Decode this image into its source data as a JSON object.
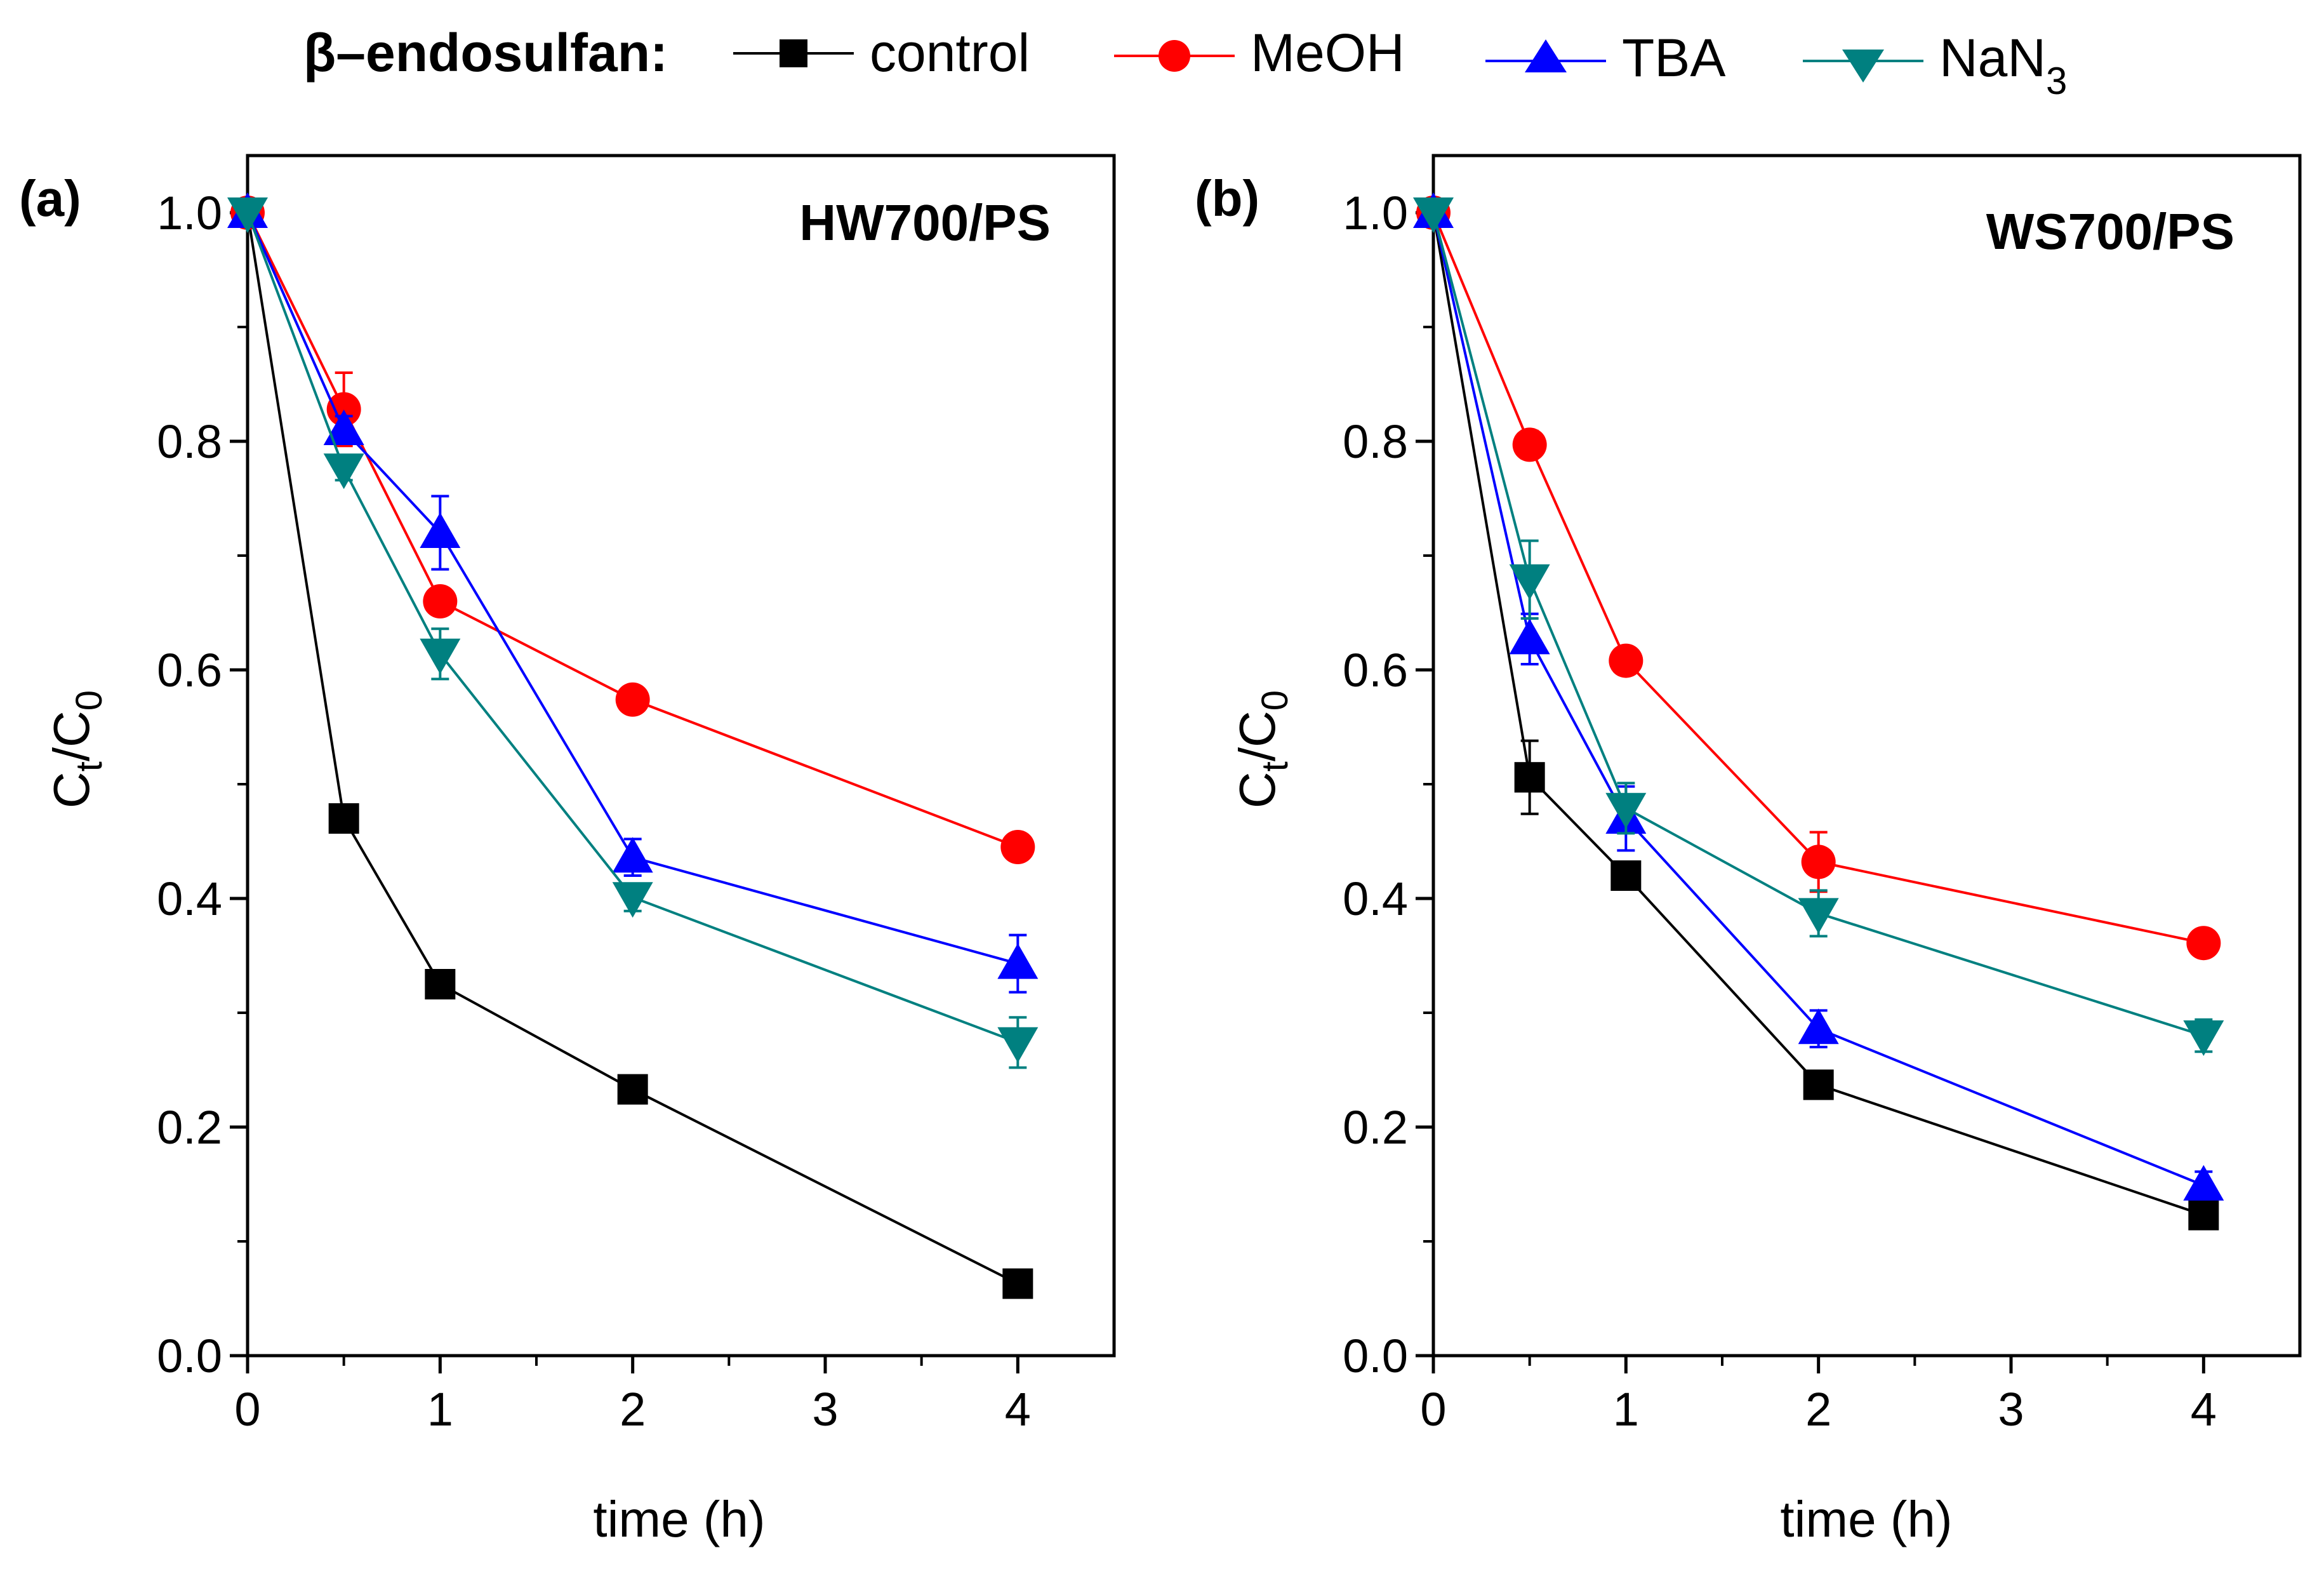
{
  "legend": {
    "title": "β–endosulfan:",
    "items": [
      {
        "key": "control",
        "label": "control",
        "sub": "",
        "color": "#000000",
        "marker": "square"
      },
      {
        "key": "meoh",
        "label": "MeOH",
        "sub": "",
        "color": "#ff0000",
        "marker": "circle"
      },
      {
        "key": "tba",
        "label": "TBA",
        "sub": "",
        "color": "#0000ff",
        "marker": "triangle-up"
      },
      {
        "key": "nan3",
        "label": "NaN",
        "sub": "3",
        "color": "#008080",
        "marker": "triangle-down"
      }
    ]
  },
  "chart_data": [
    {
      "type": "line",
      "panel_label": "(a)",
      "title": "HW700/PS",
      "xlabel": "time (h)",
      "ylabel_main": "C",
      "ylabel_sub1": "t",
      "ylabel_mid": "/C",
      "ylabel_sub2": "0",
      "xlim": [
        0,
        4.5
      ],
      "ylim": [
        0,
        1.05
      ],
      "xticks": [
        0,
        1,
        2,
        3,
        4
      ],
      "yticks": [
        0.0,
        0.2,
        0.4,
        0.6,
        0.8,
        1.0
      ],
      "xtick_labels": [
        "0",
        "1",
        "2",
        "3",
        "4"
      ],
      "ytick_labels": [
        "0.0",
        "0.2",
        "0.4",
        "0.6",
        "0.8",
        "1.0"
      ],
      "x": [
        0,
        0.5,
        1,
        2,
        4
      ],
      "series": [
        {
          "key": "control",
          "name": "control",
          "values": [
            1.0,
            0.47,
            0.325,
            0.233,
            0.063
          ],
          "errors": [
            0,
            0,
            0,
            0,
            0
          ]
        },
        {
          "key": "meoh",
          "name": "MeOH",
          "values": [
            1.0,
            0.828,
            0.66,
            0.574,
            0.445
          ],
          "errors": [
            0,
            0.032,
            0,
            0,
            0
          ]
        },
        {
          "key": "tba",
          "name": "TBA",
          "values": [
            1.0,
            0.81,
            0.72,
            0.436,
            0.343
          ],
          "errors": [
            0,
            0.012,
            0.032,
            0.016,
            0.025
          ]
        },
        {
          "key": "nan3",
          "name": "NaN3",
          "values": [
            1.0,
            0.776,
            0.614,
            0.401,
            0.274
          ],
          "errors": [
            0,
            0.01,
            0.022,
            0.012,
            0.022
          ]
        }
      ]
    },
    {
      "type": "line",
      "panel_label": "(b)",
      "title": "WS700/PS",
      "xlabel": "time (h)",
      "ylabel_main": "C",
      "ylabel_sub1": "t",
      "ylabel_mid": "/C",
      "ylabel_sub2": "0",
      "xlim": [
        0,
        4.5
      ],
      "ylim": [
        0,
        1.05
      ],
      "xticks": [
        0,
        1,
        2,
        3,
        4
      ],
      "yticks": [
        0.0,
        0.2,
        0.4,
        0.6,
        0.8,
        1.0
      ],
      "xtick_labels": [
        "0",
        "1",
        "2",
        "3",
        "4"
      ],
      "ytick_labels": [
        "0.0",
        "0.2",
        "0.4",
        "0.6",
        "0.8",
        "1.0"
      ],
      "x": [
        0,
        0.5,
        1,
        2,
        4
      ],
      "series": [
        {
          "key": "control",
          "name": "control",
          "values": [
            1.0,
            0.506,
            0.42,
            0.237,
            0.123
          ],
          "errors": [
            0,
            0.032,
            0,
            0,
            0
          ]
        },
        {
          "key": "meoh",
          "name": "MeOH",
          "values": [
            1.0,
            0.797,
            0.608,
            0.432,
            0.361
          ],
          "errors": [
            0,
            0.012,
            0,
            0.026,
            0
          ]
        },
        {
          "key": "tba",
          "name": "TBA",
          "values": [
            1.0,
            0.627,
            0.47,
            0.286,
            0.149
          ],
          "errors": [
            0,
            0.022,
            0.028,
            0.016,
            0.012
          ]
        },
        {
          "key": "nan3",
          "name": "NaN3",
          "values": [
            1.0,
            0.679,
            0.479,
            0.387,
            0.28
          ],
          "errors": [
            0,
            0.034,
            0.022,
            0.02,
            0.014
          ]
        }
      ]
    }
  ]
}
